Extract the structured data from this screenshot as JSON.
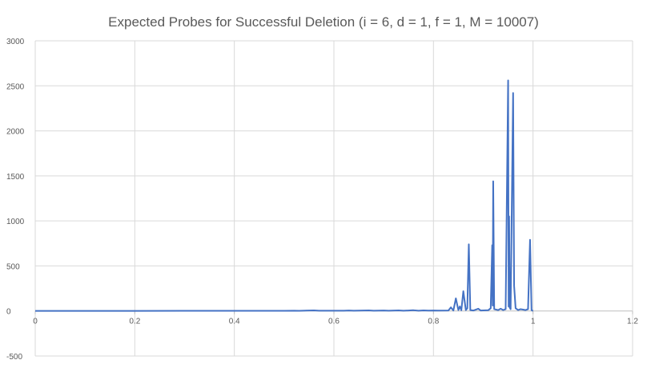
{
  "chart_data": {
    "type": "line",
    "title": "Expected Probes for Successful Deletion (i = 6, d = 1, f = 1, M = 10007)",
    "xlabel": "",
    "ylabel": "",
    "xlim": [
      0,
      1.2
    ],
    "ylim": [
      -500,
      3000
    ],
    "x_ticks": [
      0,
      0.2,
      0.4,
      0.6,
      0.8,
      1,
      1.2
    ],
    "x_tick_labels": [
      "0",
      "0.2",
      "0.4",
      "0.6",
      "0.8",
      "1",
      "1.2"
    ],
    "y_ticks": [
      -500,
      0,
      500,
      1000,
      1500,
      2000,
      2500,
      3000
    ],
    "y_tick_labels": [
      "-500",
      "0",
      "500",
      "1000",
      "1500",
      "2000",
      "2500",
      "3000"
    ],
    "grid": true,
    "legend": "none",
    "series_color": "#4472c4",
    "series": [
      {
        "points": [
          [
            0,
            1
          ],
          [
            0.1,
            1.1
          ],
          [
            0.2,
            1.2
          ],
          [
            0.3,
            1.4
          ],
          [
            0.4,
            1.7
          ],
          [
            0.5,
            2.2
          ],
          [
            0.52,
            3
          ],
          [
            0.53,
            2
          ],
          [
            0.56,
            6
          ],
          [
            0.57,
            3
          ],
          [
            0.62,
            3
          ],
          [
            0.63,
            5
          ],
          [
            0.64,
            3
          ],
          [
            0.67,
            6
          ],
          [
            0.68,
            3
          ],
          [
            0.7,
            5
          ],
          [
            0.71,
            3
          ],
          [
            0.73,
            6
          ],
          [
            0.74,
            3
          ],
          [
            0.76,
            8
          ],
          [
            0.77,
            3
          ],
          [
            0.78,
            6
          ],
          [
            0.79,
            4
          ],
          [
            0.8,
            5
          ],
          [
            0.81,
            4
          ],
          [
            0.83,
            5
          ],
          [
            0.835,
            40
          ],
          [
            0.84,
            5
          ],
          [
            0.845,
            140
          ],
          [
            0.85,
            10
          ],
          [
            0.853,
            50
          ],
          [
            0.856,
            8
          ],
          [
            0.86,
            220
          ],
          [
            0.865,
            10
          ],
          [
            0.868,
            30
          ],
          [
            0.871,
            740
          ],
          [
            0.874,
            10
          ],
          [
            0.88,
            5
          ],
          [
            0.89,
            25
          ],
          [
            0.895,
            5
          ],
          [
            0.91,
            8
          ],
          [
            0.915,
            30
          ],
          [
            0.918,
            730
          ],
          [
            0.919,
            60
          ],
          [
            0.92,
            1440
          ],
          [
            0.922,
            20
          ],
          [
            0.93,
            10
          ],
          [
            0.935,
            25
          ],
          [
            0.94,
            10
          ],
          [
            0.945,
            20
          ],
          [
            0.95,
            2560
          ],
          [
            0.951,
            50
          ],
          [
            0.952,
            1050
          ],
          [
            0.953,
            40
          ],
          [
            0.955,
            20
          ],
          [
            0.96,
            2420
          ],
          [
            0.962,
            280
          ],
          [
            0.965,
            30
          ],
          [
            0.97,
            10
          ],
          [
            0.975,
            20
          ],
          [
            0.98,
            15
          ],
          [
            0.985,
            10
          ],
          [
            0.99,
            20
          ],
          [
            0.994,
            790
          ],
          [
            0.997,
            10
          ],
          [
            1,
            0
          ]
        ]
      }
    ]
  }
}
